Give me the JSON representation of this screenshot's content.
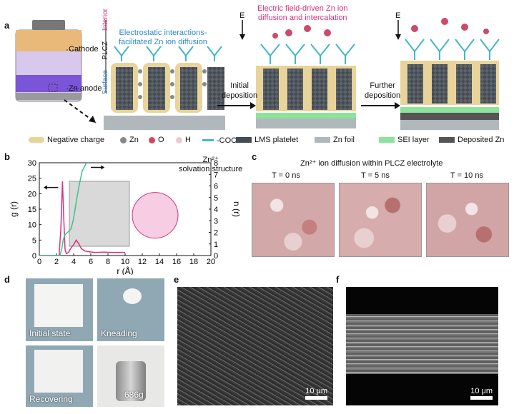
{
  "panel_a": {
    "label": "a",
    "cathode": "Cathode",
    "anode": "Zn anode",
    "electrostatic": [
      "Electrostatic interactions-",
      "facilitated Zn ion diffusion"
    ],
    "interior": "Interior",
    "plcz": "PLCZ",
    "surface": "Surface",
    "field_title": [
      "Electric field-driven Zn ion",
      "diffusion and intercalation"
    ],
    "e1": "E",
    "e2": "E",
    "step1": [
      "Initial",
      "deposition"
    ],
    "step2": [
      "Further",
      "deposition"
    ]
  },
  "legend": [
    "Negative charge",
    "Zn",
    "O",
    "H",
    "-COO⁻",
    "LMS platelet",
    "Zn foil",
    "SEI layer",
    "Deposited Zn"
  ],
  "panel_b": {
    "label": "b",
    "annot": [
      "Zn²⁺",
      "solvation structure"
    ]
  },
  "panel_c": {
    "label": "c",
    "title": "Zn²⁺ ion diffusion within PLCZ electrolyte",
    "times": [
      "T = 0 ns",
      "T = 5 ns",
      "T = 10 ns"
    ]
  },
  "panel_d": {
    "label": "d",
    "captions": [
      "Initial state",
      "Kneading",
      "Recovering",
      "686g"
    ]
  },
  "panel_e": {
    "label": "e",
    "scale": "10 μm"
  },
  "panel_f": {
    "label": "f",
    "scale": "10 μm"
  },
  "chart_data": {
    "type": "line",
    "xlabel": "r (Å)",
    "ylabel": "g (r)",
    "y2label": "n (r)",
    "xlim": [
      0,
      20
    ],
    "ylim": [
      0,
      30
    ],
    "y2lim": [
      0,
      8
    ],
    "xticks": [
      0,
      2,
      4,
      6,
      8,
      10,
      12,
      14,
      16,
      18,
      20
    ],
    "yticks": [
      0,
      5,
      10,
      15,
      20,
      25,
      30
    ],
    "y2ticks": [
      0,
      1,
      2,
      3,
      4,
      5,
      6,
      7,
      8
    ],
    "series": [
      {
        "axis": "left",
        "color": "#d6337c",
        "x": [
          0,
          2.3,
          2.5,
          2.7,
          2.85,
          3.0,
          3.15,
          3.4,
          3.7,
          4.0,
          4.3,
          4.6,
          4.9,
          5.3,
          5.8,
          6.5,
          7.5,
          8.5,
          10
        ],
        "y": [
          0,
          0,
          8,
          24,
          12,
          2,
          0.6,
          1,
          2.5,
          3.5,
          5,
          3.8,
          2.2,
          1.5,
          1.2,
          1.0,
          1.1,
          1.0,
          1.0
        ]
      },
      {
        "axis": "right",
        "color": "#3fc18b",
        "x": [
          0,
          2.4,
          2.6,
          2.8,
          3.0,
          3.3,
          3.7,
          4.0,
          4.3,
          4.6,
          5.0,
          5.5
        ],
        "y": [
          0,
          0,
          0.5,
          1.4,
          1.8,
          2.0,
          2.3,
          3.2,
          4.6,
          5.9,
          7.3,
          8
        ]
      }
    ]
  }
}
